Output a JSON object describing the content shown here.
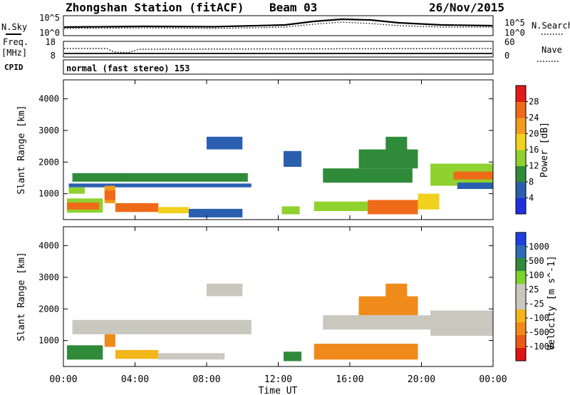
{
  "header": {
    "station": "Zhongshan Station (fitACF)",
    "beam": "Beam 03",
    "date": "26/Nov/2015"
  },
  "strips": {
    "nsky_label": "N.Sky",
    "nsearch_label": "N.Search",
    "freq_label_1": "Freq.",
    "freq_label_2": "[MHz]",
    "nave_label": "Nave",
    "cpid_label": "CPID",
    "cpid_value": "normal (fast stereo) 153",
    "noise_ticks_left": [
      "10^5",
      "10^0"
    ],
    "noise_ticks_right": [
      "10^5",
      "10^0"
    ],
    "freq_ticks": [
      "18",
      "8"
    ],
    "nave_ticks": [
      "60",
      "0"
    ]
  },
  "colors": {
    "power_scale": [
      "#1f2fe0",
      "#2a5fb0",
      "#2f8a3a",
      "#8fd12e",
      "#f0d21e",
      "#f39b1f",
      "#ef6a18",
      "#e31a1a"
    ],
    "velocity_scale": [
      "#1f3fe0",
      "#2d6ab8",
      "#2f8a3a",
      "#7ed32c",
      "#c8c8bf",
      "#c8c8bf",
      "#f2b51a",
      "#f08a1a",
      "#ec5a16",
      "#e01414"
    ],
    "ground_scatter": "#c8c8bf"
  },
  "chart_data": [
    {
      "type": "heatmap",
      "title": "",
      "xlabel": "",
      "ylabel": "Slant Range [km]",
      "colorbar_label": "Power [dB]",
      "colorbar_ticks": [
        "4",
        "8",
        "12",
        "16",
        "20",
        "24",
        "28"
      ],
      "xlim": [
        "00:00",
        "24:00"
      ],
      "ylim": [
        180,
        4600
      ],
      "yticks": [
        "1000",
        "2000",
        "3000",
        "4000"
      ],
      "blocks": [
        {
          "t0": 0.5,
          "t1": 3.5,
          "r0": 1380,
          "r1": 1650,
          "v": 10
        },
        {
          "t0": 3.5,
          "t1": 10.3,
          "r0": 1380,
          "r1": 1650,
          "v": 8
        },
        {
          "t0": 0.3,
          "t1": 10.5,
          "r0": 1200,
          "r1": 1320,
          "v": 6
        },
        {
          "t0": 0.3,
          "t1": 1.2,
          "r0": 1000,
          "r1": 1200,
          "v": 13
        },
        {
          "t0": 0.2,
          "t1": 2.2,
          "r0": 400,
          "r1": 850,
          "v": 14
        },
        {
          "t0": 0.2,
          "t1": 2.0,
          "r0": 500,
          "r1": 720,
          "v": 27
        },
        {
          "t0": 2.3,
          "t1": 2.9,
          "r0": 700,
          "r1": 1250,
          "v": 20
        },
        {
          "t0": 2.3,
          "t1": 2.9,
          "r0": 800,
          "r1": 1100,
          "v": 27
        },
        {
          "t0": 2.9,
          "t1": 5.3,
          "r0": 420,
          "r1": 700,
          "v": 26
        },
        {
          "t0": 5.3,
          "t1": 7.0,
          "r0": 380,
          "r1": 580,
          "v": 16
        },
        {
          "t0": 7.0,
          "t1": 10.0,
          "r0": 250,
          "r1": 520,
          "v": 6
        },
        {
          "t0": 8.0,
          "t1": 10.0,
          "r0": 2400,
          "r1": 2800,
          "v": 5
        },
        {
          "t0": 12.2,
          "t1": 13.2,
          "r0": 350,
          "r1": 600,
          "v": 13
        },
        {
          "t0": 14.0,
          "t1": 17.0,
          "r0": 450,
          "r1": 750,
          "v": 14
        },
        {
          "t0": 17.0,
          "t1": 19.8,
          "r0": 350,
          "r1": 800,
          "v": 27
        },
        {
          "t0": 19.8,
          "t1": 21.0,
          "r0": 500,
          "r1": 1000,
          "v": 18
        },
        {
          "t0": 14.5,
          "t1": 19.5,
          "r0": 1350,
          "r1": 1800,
          "v": 10
        },
        {
          "t0": 16.5,
          "t1": 19.8,
          "r0": 1800,
          "r1": 2400,
          "v": 9
        },
        {
          "t0": 18.0,
          "t1": 19.2,
          "r0": 2300,
          "r1": 2800,
          "v": 8
        },
        {
          "t0": 20.5,
          "t1": 24.0,
          "r0": 1250,
          "r1": 1950,
          "v": 14
        },
        {
          "t0": 21.8,
          "t1": 24.0,
          "r0": 1450,
          "r1": 1700,
          "v": 24
        },
        {
          "t0": 22.0,
          "t1": 24.0,
          "r0": 1150,
          "r1": 1350,
          "v": 5
        },
        {
          "t0": 12.3,
          "t1": 13.3,
          "r0": 1850,
          "r1": 2350,
          "v": 5
        }
      ]
    },
    {
      "type": "heatmap",
      "title": "",
      "xlabel": "Time UT",
      "ylabel": "Slant Range [km]",
      "colorbar_label": "Velocity [m s^-1]",
      "colorbar_ticks": [
        "-1000",
        "-500",
        "-100",
        "-25",
        "25",
        "100",
        "500",
        "1000"
      ],
      "xlim": [
        "00:00",
        "24:00"
      ],
      "xticks": [
        "00:00",
        "04:00",
        "08:00",
        "12:00",
        "16:00",
        "20:00",
        "00:00"
      ],
      "ylim": [
        180,
        4600
      ],
      "yticks": [
        "1000",
        "2000",
        "3000",
        "4000"
      ],
      "blocks": [
        {
          "t0": 0.5,
          "t1": 10.5,
          "r0": 1200,
          "r1": 1650,
          "v": 0
        },
        {
          "t0": 0.2,
          "t1": 2.2,
          "r0": 400,
          "r1": 850,
          "v": 150
        },
        {
          "t0": 2.3,
          "t1": 2.9,
          "r0": 800,
          "r1": 1200,
          "v": -200
        },
        {
          "t0": 2.9,
          "t1": 5.3,
          "r0": 420,
          "r1": 700,
          "v": -60
        },
        {
          "t0": 5.3,
          "t1": 9.0,
          "r0": 400,
          "r1": 600,
          "v": 0
        },
        {
          "t0": 8.0,
          "t1": 10.0,
          "r0": 2400,
          "r1": 2800,
          "v": 0
        },
        {
          "t0": 12.3,
          "t1": 13.3,
          "r0": 350,
          "r1": 650,
          "v": 300
        },
        {
          "t0": 14.0,
          "t1": 19.8,
          "r0": 400,
          "r1": 900,
          "v": -150
        },
        {
          "t0": 16.5,
          "t1": 19.8,
          "r0": 1800,
          "r1": 2400,
          "v": -150
        },
        {
          "t0": 18.0,
          "t1": 19.2,
          "r0": 2300,
          "r1": 2800,
          "v": -120
        },
        {
          "t0": 14.5,
          "t1": 24.0,
          "r0": 1350,
          "r1": 1800,
          "v": 0
        },
        {
          "t0": 20.5,
          "t1": 24.0,
          "r0": 1150,
          "r1": 1950,
          "v": 0
        }
      ]
    }
  ]
}
